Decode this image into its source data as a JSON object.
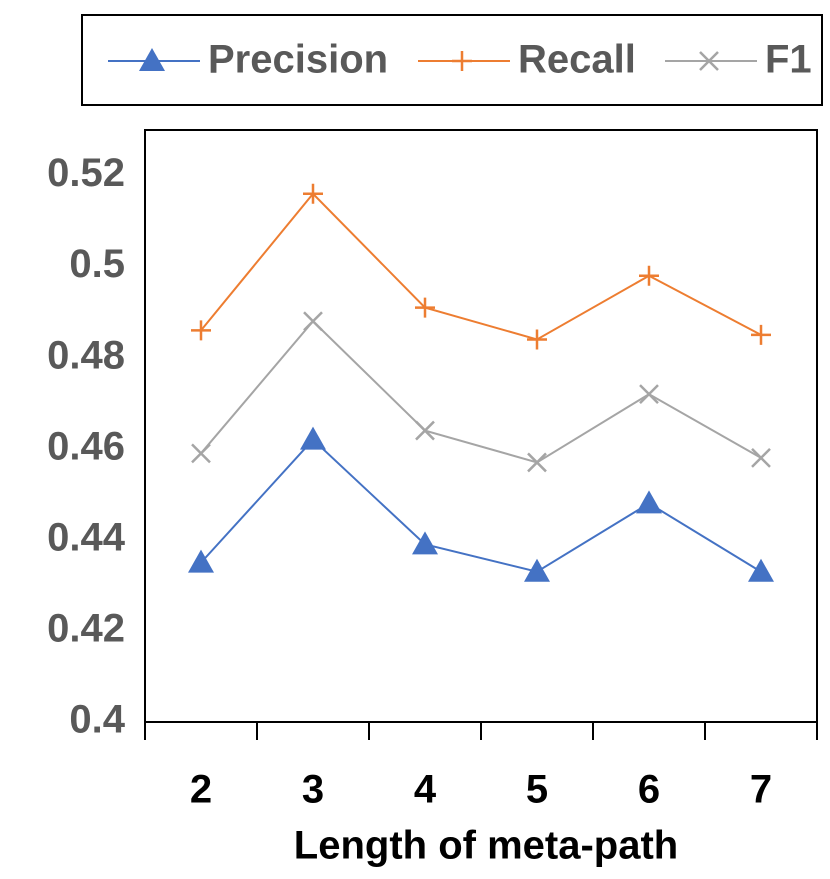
{
  "chart_data": {
    "type": "line",
    "x_label": "Length of meta-path",
    "categories": [
      "2",
      "3",
      "4",
      "5",
      "6",
      "7"
    ],
    "series": [
      {
        "name": "Precision",
        "color": "#4472c4",
        "marker": "triangle",
        "values": [
          0.435,
          0.462,
          0.439,
          0.433,
          0.448,
          0.433
        ]
      },
      {
        "name": "Recall",
        "color": "#ed7d31",
        "marker": "plus",
        "values": [
          0.486,
          0.516,
          0.491,
          0.484,
          0.498,
          0.485
        ]
      },
      {
        "name": "F1",
        "color": "#a5a5a5",
        "marker": "x",
        "values": [
          0.459,
          0.488,
          0.464,
          0.457,
          0.472,
          0.458
        ]
      }
    ],
    "ylim": [
      0.4,
      0.53
    ],
    "yticks": [
      0.4,
      0.42,
      0.44,
      0.46,
      0.48,
      0.5,
      0.52
    ],
    "grid": false,
    "legend": "top"
  }
}
